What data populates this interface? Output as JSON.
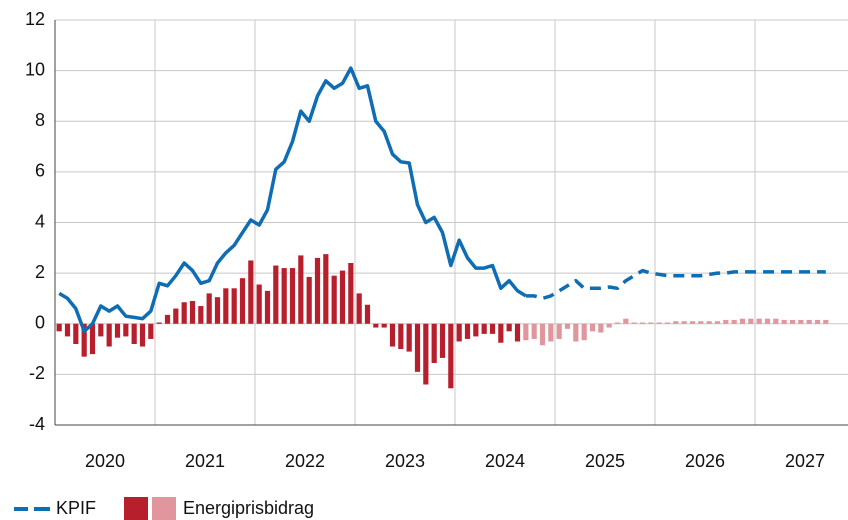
{
  "chart_data": {
    "type": "bar-line",
    "categories": [
      "2020",
      "2021",
      "2022",
      "2023",
      "2024",
      "2025",
      "2026",
      "2027"
    ],
    "ylim": [
      -4,
      12
    ],
    "yticks": [
      -4,
      -2,
      0,
      2,
      4,
      6,
      8,
      10,
      12
    ],
    "grid": true,
    "legend": "bottom",
    "series": [
      {
        "name": "KPIF",
        "type": "line",
        "color": "#0f6db3",
        "values": [
          [
            1.2,
            1.0,
            0.6,
            -0.3,
            0.0,
            0.7,
            0.5,
            0.7,
            0.3,
            0.25,
            0.2,
            0.5
          ],
          [
            1.6,
            1.5,
            1.9,
            2.4,
            2.1,
            1.6,
            1.7,
            2.4,
            2.8,
            3.1,
            3.6,
            4.1
          ],
          [
            3.9,
            4.5,
            6.1,
            6.4,
            7.2,
            8.4,
            8.0,
            9.0,
            9.6,
            9.3,
            9.5,
            10.1
          ],
          [
            9.3,
            9.4,
            8.0,
            7.6,
            6.7,
            6.4,
            6.35,
            4.7,
            4.0,
            4.2,
            3.6,
            2.3
          ],
          [
            3.3,
            2.6,
            2.2,
            2.2,
            2.3,
            1.4,
            1.7,
            1.3,
            1.1,
            null,
            null,
            null
          ],
          [
            null,
            null,
            null,
            null,
            null,
            null,
            null,
            null,
            null,
            null,
            null,
            null
          ],
          [
            null,
            null,
            null,
            null,
            null,
            null,
            null,
            null,
            null,
            null,
            null,
            null
          ],
          [
            null,
            null,
            null,
            null,
            null,
            null,
            null,
            null,
            null,
            null,
            null,
            null
          ]
        ],
        "forecast": [
          [
            null,
            null,
            null,
            null,
            null,
            null,
            null,
            null,
            null,
            null,
            null,
            null
          ],
          [
            null,
            null,
            null,
            null,
            null,
            null,
            null,
            null,
            null,
            null,
            null,
            null
          ],
          [
            null,
            null,
            null,
            null,
            null,
            null,
            null,
            null,
            null,
            null,
            null,
            null
          ],
          [
            null,
            null,
            null,
            null,
            null,
            null,
            null,
            null,
            null,
            null,
            null,
            null
          ],
          [
            null,
            null,
            null,
            null,
            null,
            null,
            null,
            null,
            1.1,
            1.1,
            1.0,
            1.1
          ],
          [
            1.3,
            1.5,
            1.7,
            1.4,
            1.4,
            1.4,
            1.45,
            1.4,
            1.7,
            1.9,
            2.1,
            2.0
          ],
          [
            1.95,
            1.9,
            1.9,
            1.9,
            1.9,
            1.9,
            1.95,
            2.0,
            2.0,
            2.05,
            2.05,
            2.05
          ],
          [
            2.05,
            2.05,
            2.05,
            2.05,
            2.05,
            2.05,
            2.05,
            2.05,
            2.05,
            null,
            null,
            null
          ]
        ]
      },
      {
        "name": "Energiprisbidrag",
        "type": "bar",
        "color": "#b81f2d",
        "forecast_color": "#e0969c",
        "values": [
          [
            -0.3,
            -0.5,
            -0.8,
            -1.3,
            -1.2,
            -0.5,
            -0.9,
            -0.55,
            -0.5,
            -0.8,
            -0.9,
            -0.6
          ],
          [
            0.05,
            0.35,
            0.6,
            0.85,
            0.9,
            0.7,
            1.2,
            1.05,
            1.4,
            1.4,
            1.8,
            2.5
          ],
          [
            1.55,
            1.3,
            2.3,
            2.2,
            2.2,
            2.7,
            1.85,
            2.6,
            2.75,
            1.9,
            2.1,
            2.4
          ],
          [
            1.2,
            0.75,
            -0.15,
            -0.15,
            -0.9,
            -1.0,
            -1.1,
            -1.9,
            -2.4,
            -1.55,
            -1.35,
            -2.55
          ],
          [
            -0.7,
            -0.6,
            -0.5,
            -0.4,
            -0.4,
            -0.75,
            -0.3,
            -0.7,
            null,
            null,
            null,
            null
          ],
          [
            null,
            null,
            null,
            null,
            null,
            null,
            null,
            null,
            null,
            null,
            null,
            null
          ],
          [
            null,
            null,
            null,
            null,
            null,
            null,
            null,
            null,
            null,
            null,
            null,
            null
          ],
          [
            null,
            null,
            null,
            null,
            null,
            null,
            null,
            null,
            null,
            null,
            null,
            null
          ]
        ],
        "forecast": [
          [
            null,
            null,
            null,
            null,
            null,
            null,
            null,
            null,
            null,
            null,
            null,
            null
          ],
          [
            null,
            null,
            null,
            null,
            null,
            null,
            null,
            null,
            null,
            null,
            null,
            null
          ],
          [
            null,
            null,
            null,
            null,
            null,
            null,
            null,
            null,
            null,
            null,
            null,
            null
          ],
          [
            null,
            null,
            null,
            null,
            null,
            null,
            null,
            null,
            null,
            null,
            null,
            null
          ],
          [
            null,
            null,
            null,
            null,
            null,
            null,
            null,
            null,
            -0.65,
            -0.6,
            -0.85,
            -0.7
          ],
          [
            -0.6,
            -0.2,
            -0.7,
            -0.65,
            -0.3,
            -0.35,
            -0.15,
            0.05,
            0.2,
            0.05,
            0.05,
            0.05
          ],
          [
            0.05,
            0.05,
            0.1,
            0.1,
            0.1,
            0.1,
            0.1,
            0.1,
            0.15,
            0.15,
            0.2,
            0.2
          ],
          [
            0.2,
            0.2,
            0.2,
            0.15,
            0.15,
            0.15,
            0.15,
            0.15,
            0.15,
            null,
            null,
            null
          ]
        ]
      }
    ]
  }
}
